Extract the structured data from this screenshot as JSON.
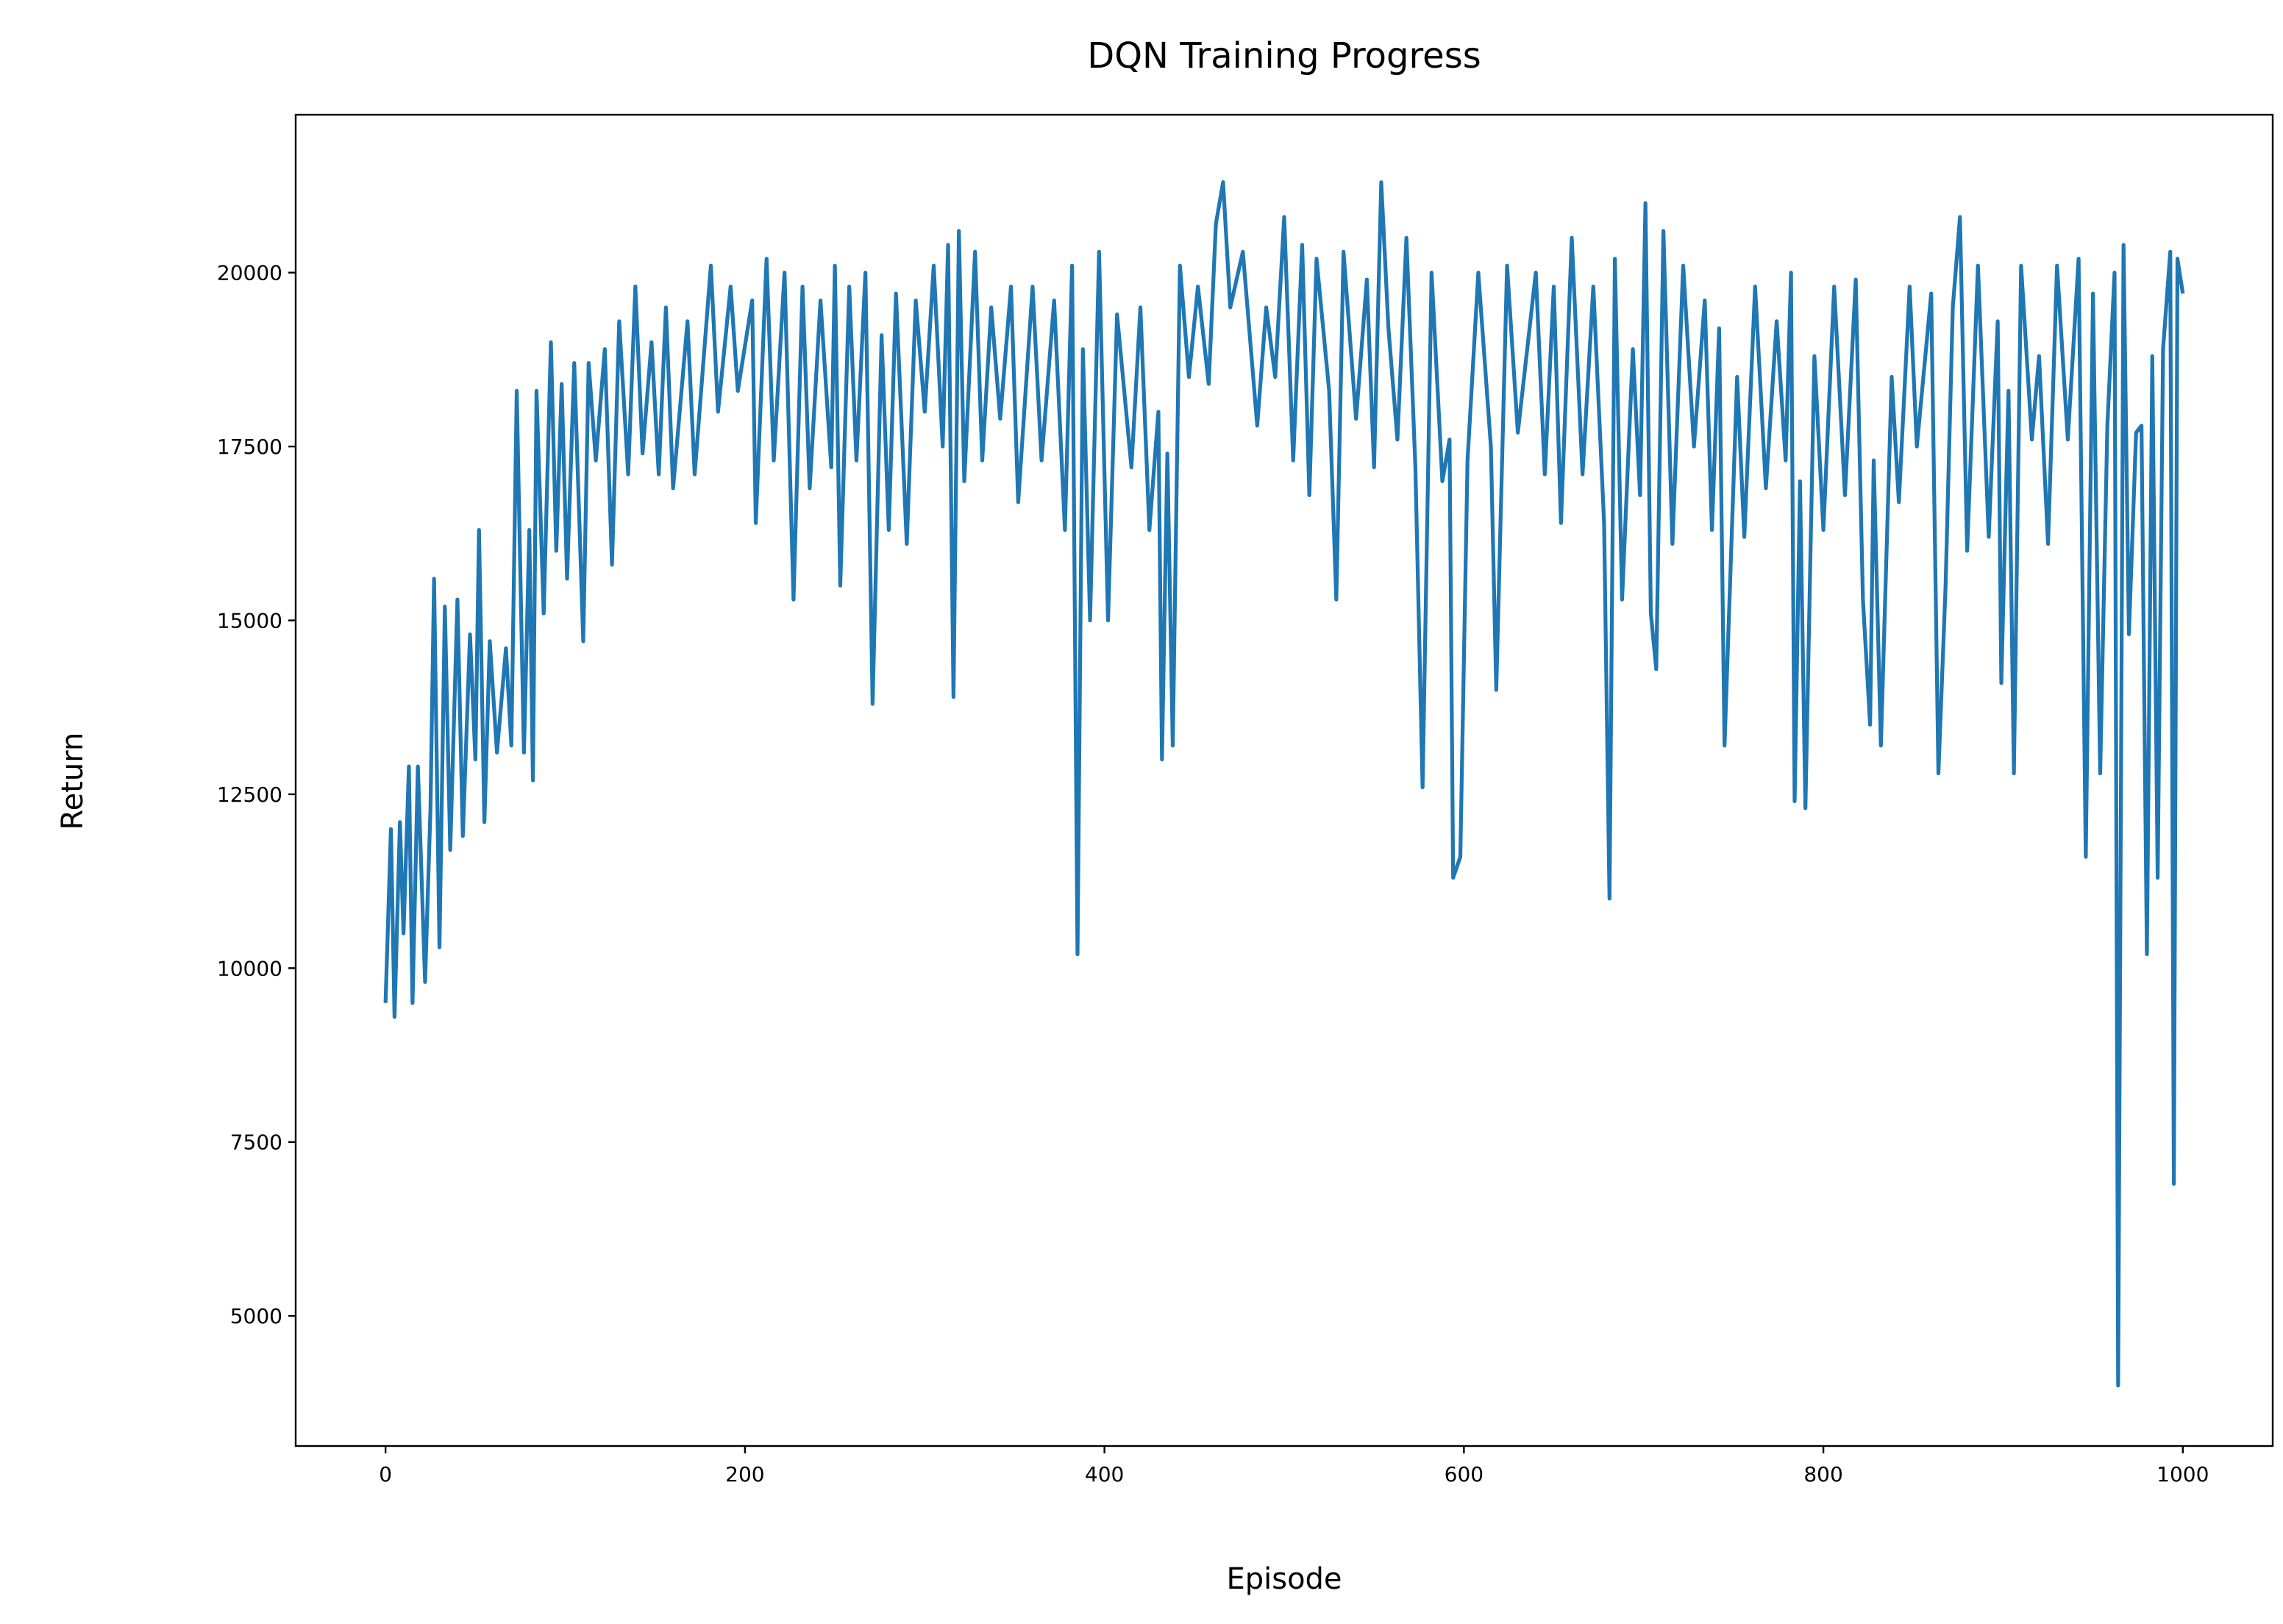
{
  "chart_data": {
    "type": "line",
    "title": "DQN Training Progress",
    "xlabel": "Episode",
    "ylabel": "Return",
    "x": [
      0,
      3,
      5,
      8,
      10,
      13,
      15,
      18,
      22,
      25,
      27,
      30,
      33,
      36,
      40,
      43,
      47,
      50,
      52,
      55,
      58,
      62,
      67,
      70,
      73,
      77,
      80,
      82,
      84,
      88,
      92,
      95,
      98,
      101,
      105,
      110,
      113,
      117,
      122,
      126,
      130,
      135,
      139,
      143,
      148,
      152,
      156,
      160,
      168,
      172,
      181,
      185,
      192,
      196,
      204,
      206,
      212,
      216,
      222,
      227,
      232,
      236,
      242,
      248,
      250,
      253,
      258,
      262,
      267,
      271,
      276,
      280,
      284,
      290,
      295,
      300,
      305,
      310,
      313,
      316,
      319,
      322,
      328,
      332,
      337,
      342,
      348,
      352,
      360,
      365,
      372,
      378,
      382,
      385,
      388,
      392,
      397,
      402,
      407,
      415,
      420,
      425,
      430,
      432,
      435,
      438,
      442,
      447,
      452,
      458,
      462,
      466,
      470,
      477,
      485,
      490,
      495,
      500,
      505,
      510,
      514,
      518,
      525,
      529,
      533,
      540,
      546,
      550,
      554,
      558,
      563,
      568,
      573,
      577,
      582,
      588,
      592,
      594,
      598,
      602,
      608,
      615,
      618,
      624,
      630,
      640,
      645,
      650,
      654,
      660,
      666,
      672,
      678,
      681,
      684,
      688,
      694,
      698,
      701,
      704,
      707,
      711,
      716,
      722,
      728,
      734,
      738,
      742,
      745,
      752,
      756,
      762,
      768,
      774,
      779,
      782,
      784,
      787,
      790,
      795,
      800,
      806,
      812,
      818,
      822,
      826,
      828,
      832,
      838,
      842,
      848,
      852,
      860,
      864,
      868,
      872,
      876,
      880,
      886,
      892,
      897,
      899,
      903,
      906,
      910,
      916,
      920,
      925,
      930,
      936,
      942,
      946,
      950,
      954,
      958,
      962,
      964,
      967,
      970,
      974,
      977,
      980,
      983,
      986,
      989,
      993,
      995,
      997,
      1000
    ],
    "series": [
      {
        "color": "#1f77b4",
        "values": [
          9500,
          12000,
          9300,
          12100,
          10500,
          12900,
          9500,
          12900,
          9800,
          12300,
          15600,
          10300,
          15200,
          11700,
          15300,
          11900,
          14800,
          13000,
          16300,
          12100,
          14700,
          13100,
          14600,
          13200,
          18300,
          13100,
          16300,
          12700,
          18300,
          15100,
          19000,
          16000,
          18400,
          15600,
          18700,
          14700,
          18700,
          17300,
          18900,
          15800,
          19300,
          17100,
          19800,
          17400,
          19000,
          17100,
          19500,
          16900,
          19300,
          17100,
          20100,
          18000,
          19800,
          18300,
          19600,
          16400,
          20200,
          17300,
          20000,
          15300,
          19800,
          16900,
          19600,
          17200,
          20100,
          15500,
          19800,
          17300,
          20000,
          13800,
          19100,
          16300,
          19700,
          16100,
          19600,
          18000,
          20100,
          17500,
          20400,
          13900,
          20600,
          17000,
          20300,
          17300,
          19500,
          17900,
          19800,
          16700,
          19800,
          17300,
          19600,
          16300,
          20100,
          10200,
          18900,
          15000,
          20300,
          15000,
          19400,
          17200,
          19500,
          16300,
          18000,
          13000,
          17400,
          13200,
          20100,
          18500,
          19800,
          18400,
          20700,
          21300,
          19500,
          20300,
          17800,
          19500,
          18500,
          20800,
          17300,
          20400,
          16800,
          20200,
          18300,
          15300,
          20300,
          17900,
          19900,
          17200,
          21300,
          19200,
          17600,
          20500,
          17200,
          12600,
          20000,
          17000,
          17600,
          11300,
          11600,
          17300,
          20000,
          17500,
          14000,
          20100,
          17700,
          20000,
          17100,
          19800,
          16400,
          20500,
          17100,
          19800,
          16400,
          11000,
          20200,
          15300,
          18900,
          16800,
          21000,
          15100,
          14300,
          20600,
          16100,
          20100,
          17500,
          19600,
          16300,
          19200,
          13200,
          18500,
          16200,
          19800,
          16900,
          19300,
          17300,
          20000,
          12400,
          17000,
          12300,
          18800,
          16300,
          19800,
          16800,
          19900,
          15300,
          13500,
          17300,
          13200,
          18500,
          16700,
          19800,
          17500,
          19700,
          12800,
          15500,
          19500,
          20800,
          16000,
          20100,
          16200,
          19300,
          14100,
          18300,
          12800,
          20100,
          17600,
          18800,
          16100,
          20100,
          17600,
          20200,
          11600,
          19700,
          12800,
          17800,
          20000,
          4000,
          20400,
          14800,
          17700,
          17800,
          10200,
          18800,
          11300,
          18900,
          20300,
          6900,
          20200,
          19700
        ]
      }
    ],
    "xlim": [
      -50,
      1050
    ],
    "ylim": [
      3130,
      22270
    ],
    "xticks": [
      0,
      200,
      400,
      600,
      800,
      1000
    ],
    "yticks": [
      5000,
      7500,
      10000,
      12500,
      15000,
      17500,
      20000
    ],
    "grid": false
  }
}
